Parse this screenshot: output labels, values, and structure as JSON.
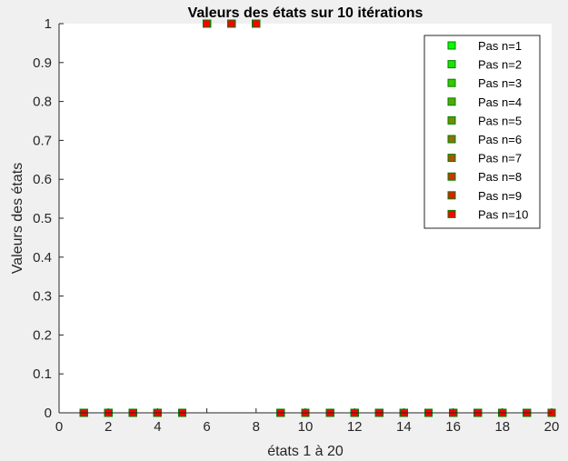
{
  "chart_data": {
    "type": "scatter",
    "title": "Valeurs des états sur 10 itérations",
    "xlabel": "états 1 à 20",
    "ylabel": "Valeurs des états",
    "xlim": [
      0,
      20
    ],
    "ylim": [
      0,
      1
    ],
    "xticks": [
      0,
      2,
      4,
      6,
      8,
      10,
      12,
      14,
      16,
      18,
      20
    ],
    "yticks": [
      0,
      0.1,
      0.2,
      0.3,
      0.4,
      0.5,
      0.6,
      0.7,
      0.8,
      0.9,
      1
    ],
    "grid": false,
    "legend_position": "top-right",
    "x": [
      1,
      2,
      3,
      4,
      5,
      6,
      7,
      8,
      9,
      10,
      11,
      12,
      13,
      14,
      15,
      16,
      17,
      18,
      19,
      20
    ],
    "series": [
      {
        "name": "Pas n=1",
        "color": "#00ff00",
        "values": [
          0,
          0,
          0,
          0,
          0,
          1,
          1,
          1,
          0,
          0,
          0,
          0,
          0,
          0,
          0,
          0,
          0,
          0,
          0,
          0
        ]
      },
      {
        "name": "Pas n=2",
        "color": "#1ce300",
        "values": [
          0,
          0,
          0,
          0,
          0,
          1,
          1,
          1,
          0,
          0,
          0,
          0,
          0,
          0,
          0,
          0,
          0,
          0,
          0,
          0
        ]
      },
      {
        "name": "Pas n=3",
        "color": "#38c700",
        "values": [
          0,
          0,
          0,
          0,
          0,
          1,
          1,
          1,
          0,
          0,
          0,
          0,
          0,
          0,
          0,
          0,
          0,
          0,
          0,
          0
        ]
      },
      {
        "name": "Pas n=4",
        "color": "#55aa00",
        "values": [
          0,
          0,
          0,
          0,
          0,
          1,
          1,
          1,
          0,
          0,
          0,
          0,
          0,
          0,
          0,
          0,
          0,
          0,
          0,
          0
        ]
      },
      {
        "name": "Pas n=5",
        "color": "#718e00",
        "values": [
          0,
          0,
          0,
          0,
          0,
          1,
          1,
          1,
          0,
          0,
          0,
          0,
          0,
          0,
          0,
          0,
          0,
          0,
          0,
          0
        ]
      },
      {
        "name": "Pas n=6",
        "color": "#8e7100",
        "values": [
          0,
          0,
          0,
          0,
          0,
          1,
          1,
          1,
          0,
          0,
          0,
          0,
          0,
          0,
          0,
          0,
          0,
          0,
          0,
          0
        ]
      },
      {
        "name": "Pas n=7",
        "color": "#aa5500",
        "values": [
          0,
          0,
          0,
          0,
          0,
          1,
          1,
          1,
          0,
          0,
          0,
          0,
          0,
          0,
          0,
          0,
          0,
          0,
          0,
          0
        ]
      },
      {
        "name": "Pas n=8",
        "color": "#c73800",
        "values": [
          0,
          0,
          0,
          0,
          0,
          1,
          1,
          1,
          0,
          0,
          0,
          0,
          0,
          0,
          0,
          0,
          0,
          0,
          0,
          0
        ]
      },
      {
        "name": "Pas n=9",
        "color": "#e31c00",
        "values": [
          0,
          0,
          0,
          0,
          0,
          1,
          1,
          1,
          0,
          0,
          0,
          0,
          0,
          0,
          0,
          0,
          0,
          0,
          0,
          0
        ]
      },
      {
        "name": "Pas n=10",
        "color": "#ff0000",
        "values": [
          0,
          0,
          0,
          0,
          0,
          1,
          1,
          1,
          0,
          0,
          0,
          0,
          0,
          0,
          0,
          0,
          0,
          0,
          0,
          0
        ]
      }
    ],
    "marker_edge_color": "#008000"
  }
}
